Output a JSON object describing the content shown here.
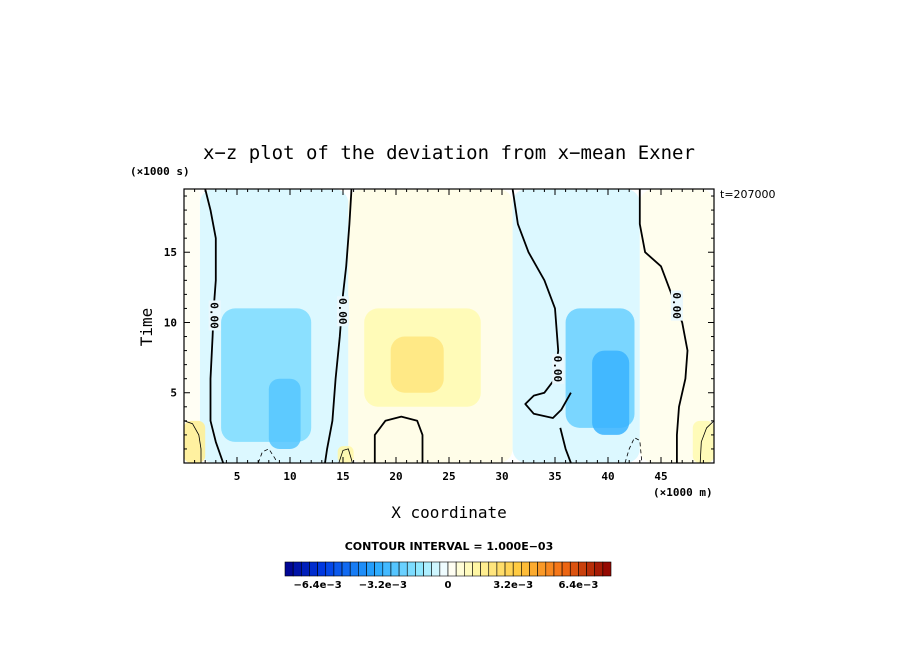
{
  "chart_data": {
    "type": "heatmap",
    "title": "x−z plot of the deviation from x−mean Exner",
    "time_label": "t=207000",
    "xlabel": "X coordinate",
    "ylabel": "Time",
    "x_unit": "(×1000 m)",
    "y_unit": "(×1000 s)",
    "xlim": [
      0,
      50
    ],
    "ylim": [
      0,
      19.5
    ],
    "x_ticks": [
      5,
      10,
      15,
      20,
      25,
      30,
      35,
      40,
      45
    ],
    "y_ticks": [
      5,
      10,
      15
    ],
    "contour_interval_text": "CONTOUR INTERVAL = 1.000E−03",
    "contour_label": "0.00",
    "colorbar": {
      "range": [
        -0.008,
        0.008
      ],
      "n_steps": 40,
      "tick_labels": [
        {
          "value": -0.0064,
          "label": "−6.4e−3"
        },
        {
          "value": -0.0032,
          "label": "−3.2e−3"
        },
        {
          "value": 0,
          "label": "0"
        },
        {
          "value": 0.0032,
          "label": "3.2e−3"
        },
        {
          "value": 0.0064,
          "label": "6.4e−3"
        }
      ]
    },
    "field_regions": [
      {
        "x": [
          1.5,
          15.5
        ],
        "y": [
          0,
          19.5
        ],
        "value": -0.0005
      },
      {
        "x": [
          15.5,
          31
        ],
        "y": [
          0,
          19.5
        ],
        "value": 0.0004
      },
      {
        "x": [
          31,
          43
        ],
        "y": [
          0,
          19.5
        ],
        "value": -0.0005
      },
      {
        "x": [
          43,
          50
        ],
        "y": [
          0,
          19.5
        ],
        "value": 0.0003
      },
      {
        "x": [
          0,
          1.5
        ],
        "y": [
          0,
          19.5
        ],
        "value": 0.0002
      },
      {
        "x": [
          3.5,
          12
        ],
        "y": [
          1.5,
          11
        ],
        "value": -0.0018
      },
      {
        "x": [
          8,
          11
        ],
        "y": [
          1,
          6
        ],
        "value": -0.0026
      },
      {
        "x": [
          36,
          42.5
        ],
        "y": [
          2.5,
          11
        ],
        "value": -0.0022
      },
      {
        "x": [
          38.5,
          42
        ],
        "y": [
          2,
          8
        ],
        "value": -0.0032
      },
      {
        "x": [
          17,
          28
        ],
        "y": [
          4,
          11
        ],
        "value": 0.0012
      },
      {
        "x": [
          19.5,
          24.5
        ],
        "y": [
          5,
          9
        ],
        "value": 0.0022
      },
      {
        "x": [
          0,
          2
        ],
        "y": [
          0,
          3
        ],
        "value": 0.0018
      },
      {
        "x": [
          48,
          50
        ],
        "y": [
          0,
          3
        ],
        "value": 0.0012
      },
      {
        "x": [
          14.5,
          16
        ],
        "y": [
          0,
          1.2
        ],
        "value": 0.0014
      }
    ],
    "zero_contours": [
      [
        [
          2,
          19.5
        ],
        [
          2.5,
          18
        ],
        [
          3,
          16
        ],
        [
          3,
          13
        ],
        [
          2.8,
          11
        ],
        [
          2.7,
          9
        ],
        [
          2.5,
          6
        ],
        [
          2.5,
          3
        ],
        [
          3,
          1.5
        ],
        [
          3.7,
          0
        ]
      ],
      [
        [
          15.8,
          19.5
        ],
        [
          15.6,
          17
        ],
        [
          15.3,
          14
        ],
        [
          15,
          12
        ],
        [
          14.7,
          9
        ],
        [
          14.3,
          6
        ],
        [
          14,
          3
        ],
        [
          13.5,
          1
        ],
        [
          13.3,
          0
        ]
      ],
      [
        [
          18,
          0
        ],
        [
          18,
          2
        ],
        [
          19,
          3
        ],
        [
          20.5,
          3.3
        ],
        [
          22,
          3
        ],
        [
          22.5,
          2
        ],
        [
          22.5,
          0
        ]
      ],
      [
        [
          31,
          19.5
        ],
        [
          31.5,
          17
        ],
        [
          32.5,
          15
        ],
        [
          34,
          13
        ],
        [
          35,
          11
        ],
        [
          35.3,
          8
        ],
        [
          35,
          6
        ],
        [
          34,
          5
        ],
        [
          33,
          4.8
        ],
        [
          32.2,
          4.2
        ],
        [
          33,
          3.5
        ],
        [
          34.8,
          3.2
        ],
        [
          35.6,
          3.8
        ],
        [
          36.5,
          5
        ]
      ],
      [
        [
          35.5,
          2.5
        ],
        [
          36,
          1
        ],
        [
          36.5,
          0
        ]
      ],
      [
        [
          43,
          19.5
        ],
        [
          43,
          17
        ],
        [
          43.5,
          15
        ],
        [
          45,
          14
        ],
        [
          46,
          12
        ],
        [
          47,
          10
        ],
        [
          47.5,
          8
        ],
        [
          47.3,
          6
        ],
        [
          46.7,
          4
        ],
        [
          46.5,
          2
        ],
        [
          46.5,
          0
        ]
      ]
    ],
    "thin_contours": [
      {
        "dashed": false,
        "points": [
          [
            0,
            3
          ],
          [
            0.8,
            2.8
          ],
          [
            1.4,
            2
          ],
          [
            1.6,
            1
          ],
          [
            1.6,
            0
          ]
        ]
      },
      {
        "dashed": false,
        "points": [
          [
            50,
            3
          ],
          [
            49.3,
            2.5
          ],
          [
            48.8,
            1.5
          ],
          [
            48.7,
            0
          ]
        ]
      },
      {
        "dashed": false,
        "points": [
          [
            14.6,
            0
          ],
          [
            15,
            0.9
          ],
          [
            15.5,
            1
          ],
          [
            15.9,
            0
          ]
        ]
      },
      {
        "dashed": true,
        "points": [
          [
            7,
            0
          ],
          [
            7.4,
            0.8
          ],
          [
            8,
            1
          ],
          [
            8.6,
            0.3
          ],
          [
            8.8,
            0
          ]
        ]
      },
      {
        "dashed": true,
        "points": [
          [
            41.6,
            0
          ],
          [
            42,
            1
          ],
          [
            42.5,
            1.8
          ],
          [
            43,
            1.6
          ],
          [
            43.2,
            0
          ]
        ]
      }
    ],
    "contour_labels": [
      {
        "x": 2.9,
        "y": 10.5
      },
      {
        "x": 15,
        "y": 10.8
      },
      {
        "x": 35.3,
        "y": 6.7
      },
      {
        "x": 46.5,
        "y": 11.2
      }
    ]
  }
}
